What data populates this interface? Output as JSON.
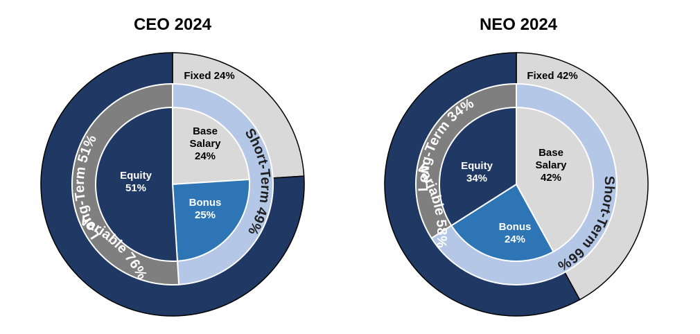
{
  "colors": {
    "variable": "#1f3864",
    "fixed": "#d9d9d9",
    "long_term": "#7f7f7f",
    "short_term": "#b4c7e7",
    "equity": "#1f3864",
    "base_salary": "#d9d9d9",
    "bonus": "#2e75b6",
    "stroke": "#ffffff",
    "outline": "#000000"
  },
  "chart_data": [
    {
      "type": "pie",
      "title": "CEO 2024",
      "rings": {
        "outer": [
          {
            "name": "Fixed",
            "value": 24,
            "label": "Fixed 24%"
          },
          {
            "name": "Variable",
            "value": 76,
            "label": "Variable 76%"
          }
        ],
        "middle": [
          {
            "name": "Short-Term",
            "value": 49,
            "label": "Short-Term 49%"
          },
          {
            "name": "Long-Term",
            "value": 51,
            "label": "Long-Term 51%"
          }
        ],
        "inner": [
          {
            "name": "Base Salary",
            "value": 24,
            "label_lines": [
              "Base",
              "Salary",
              "24%"
            ]
          },
          {
            "name": "Bonus",
            "value": 25,
            "label_lines": [
              "Bonus",
              "25%"
            ]
          },
          {
            "name": "Equity",
            "value": 51,
            "label_lines": [
              "Equity",
              "51%"
            ]
          }
        ]
      }
    },
    {
      "type": "pie",
      "title": "NEO 2024",
      "rings": {
        "outer": [
          {
            "name": "Fixed",
            "value": 42,
            "label": "Fixed 42%"
          },
          {
            "name": "Variable",
            "value": 58,
            "label": "Variable 58%"
          }
        ],
        "middle": [
          {
            "name": "Short-Term",
            "value": 66,
            "label": "Short-Term 66%"
          },
          {
            "name": "Long-Term",
            "value": 34,
            "label": "Long-Term 34%"
          }
        ],
        "inner": [
          {
            "name": "Base Salary",
            "value": 42,
            "label_lines": [
              "Base",
              "Salary",
              "42%"
            ]
          },
          {
            "name": "Bonus",
            "value": 24,
            "label_lines": [
              "Bonus",
              "24%"
            ]
          },
          {
            "name": "Equity",
            "value": 34,
            "label_lines": [
              "Equity",
              "34%"
            ]
          }
        ]
      }
    }
  ]
}
